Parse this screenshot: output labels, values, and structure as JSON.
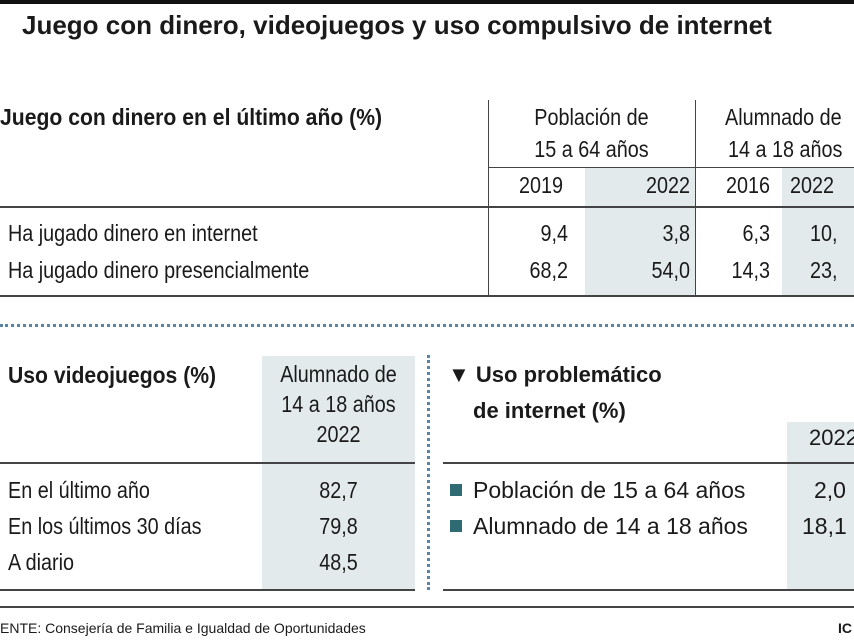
{
  "title": "Juego con dinero, videojuegos y uso compulsivo de internet",
  "gambling": {
    "title": "Juego con dinero en el último año (%)",
    "groups": [
      {
        "line1": "Población de",
        "line2": "15 a 64 años",
        "years": [
          "2019",
          "2022"
        ]
      },
      {
        "line1": "Alumnado de",
        "line2": "14 a 18 años",
        "years": [
          "2016",
          "2022"
        ]
      }
    ],
    "rows": [
      {
        "label": "Ha jugado dinero en internet",
        "values": [
          "9,4",
          "3,8",
          "6,3",
          "10,"
        ]
      },
      {
        "label": "Ha jugado dinero presencialmente",
        "values": [
          "68,2",
          "54,0",
          "14,3",
          "23,"
        ]
      }
    ]
  },
  "videogames": {
    "title": "Uso videojuegos (%)",
    "header": [
      "Alumnado de",
      "14 a 18 años",
      "2022"
    ],
    "rows": [
      {
        "label": "En el último año",
        "value": "82,7"
      },
      {
        "label": "En los últimos 30 días",
        "value": "79,8"
      },
      {
        "label": "A diario",
        "value": "48,5"
      }
    ]
  },
  "internet": {
    "title_line1": "Uso problemático",
    "title_line2": "de internet (%)",
    "year": "2022",
    "rows": [
      {
        "label": "Población de 15 a 64 años",
        "value": "2,0"
      },
      {
        "label": "Alumnado de 14 a 18 años",
        "value": "18,1"
      }
    ],
    "marker_color": "#2f6b73"
  },
  "footer": {
    "source": "ENTE: Consejería de Familia e Igualdad de Oportunidades",
    "credit": "IC"
  },
  "colors": {
    "shade": "#e3eaec",
    "dotted": "#5a84a6"
  }
}
